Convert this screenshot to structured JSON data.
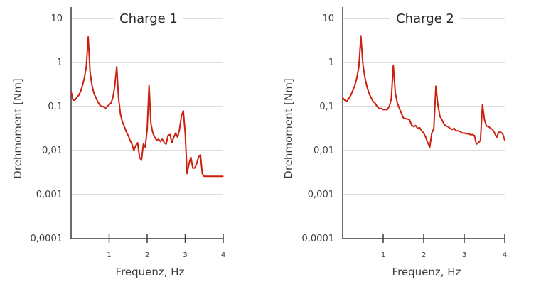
{
  "chart_data": [
    {
      "type": "line",
      "title": "Charge 1",
      "xlabel": "Frequenz, Hz",
      "ylabel": "Drehmoment [Nm]",
      "yscale": "log",
      "ylim": [
        0.0001,
        10
      ],
      "xlim": [
        0,
        4
      ],
      "ytick_labels": [
        "0,0001",
        "0,001",
        "0,01",
        "0,1",
        "1",
        "10"
      ],
      "xtick_labels": [
        "1",
        "2",
        "3",
        "4"
      ],
      "grid": "horizontal",
      "line_color": "#cc1f0e",
      "series": [
        {
          "x": [
            0.0,
            0.05,
            0.1,
            0.15,
            0.2,
            0.25,
            0.3,
            0.35,
            0.4,
            0.45,
            0.5,
            0.55,
            0.6,
            0.65,
            0.7,
            0.75,
            0.8,
            0.85,
            0.9,
            0.95,
            1.0,
            1.05,
            1.1,
            1.15,
            1.2,
            1.25,
            1.3,
            1.35,
            1.4,
            1.45,
            1.5,
            1.55,
            1.6,
            1.65,
            1.7,
            1.75,
            1.8,
            1.85,
            1.9,
            1.95,
            2.0,
            2.05,
            2.1,
            2.15,
            2.2,
            2.25,
            2.3,
            2.35,
            2.4,
            2.45,
            2.5,
            2.55,
            2.6,
            2.65,
            2.7,
            2.75,
            2.8,
            2.85,
            2.9,
            2.95,
            3.0,
            3.05,
            3.1,
            3.15,
            3.2,
            3.25,
            3.3,
            3.35,
            3.4,
            3.45,
            3.5,
            3.55,
            3.6,
            3.65,
            3.7,
            3.75,
            3.8,
            3.85,
            3.9,
            3.95,
            4.0
          ],
          "y": [
            0.22,
            0.14,
            0.14,
            0.16,
            0.18,
            0.22,
            0.3,
            0.45,
            0.8,
            3.8,
            0.6,
            0.3,
            0.2,
            0.16,
            0.13,
            0.11,
            0.1,
            0.1,
            0.09,
            0.1,
            0.11,
            0.12,
            0.16,
            0.3,
            0.8,
            0.15,
            0.065,
            0.045,
            0.035,
            0.027,
            0.022,
            0.017,
            0.014,
            0.01,
            0.013,
            0.015,
            0.007,
            0.006,
            0.014,
            0.012,
            0.03,
            0.3,
            0.04,
            0.025,
            0.02,
            0.017,
            0.018,
            0.016,
            0.018,
            0.015,
            0.014,
            0.022,
            0.023,
            0.015,
            0.02,
            0.025,
            0.02,
            0.03,
            0.06,
            0.08,
            0.025,
            0.003,
            0.005,
            0.007,
            0.004,
            0.004,
            0.005,
            0.007,
            0.008,
            0.003,
            0.0026,
            0.0026,
            0.0026,
            0.0026,
            0.0026,
            0.0026,
            0.0026,
            0.0026,
            0.0026,
            0.0026,
            0.0026
          ]
        }
      ]
    },
    {
      "type": "line",
      "title": "Charge 2",
      "xlabel": "Frequenz, Hz",
      "ylabel": "Drehmoment [Nm]",
      "yscale": "log",
      "ylim": [
        0.0001,
        10
      ],
      "xlim": [
        0,
        4
      ],
      "ytick_labels": [
        "0,0001",
        "0,001",
        "0,01",
        "0,1",
        "1",
        "10"
      ],
      "xtick_labels": [
        "1",
        "2",
        "3",
        "4"
      ],
      "grid": "horizontal",
      "line_color": "#cc1f0e",
      "series": [
        {
          "x": [
            0.0,
            0.05,
            0.1,
            0.15,
            0.2,
            0.25,
            0.3,
            0.35,
            0.4,
            0.45,
            0.5,
            0.55,
            0.6,
            0.65,
            0.7,
            0.75,
            0.8,
            0.85,
            0.9,
            0.95,
            1.0,
            1.05,
            1.1,
            1.15,
            1.2,
            1.25,
            1.3,
            1.35,
            1.4,
            1.45,
            1.5,
            1.55,
            1.6,
            1.65,
            1.7,
            1.75,
            1.8,
            1.85,
            1.9,
            1.95,
            2.0,
            2.05,
            2.1,
            2.15,
            2.2,
            2.25,
            2.3,
            2.35,
            2.4,
            2.45,
            2.5,
            2.55,
            2.6,
            2.65,
            2.7,
            2.75,
            2.8,
            2.85,
            2.9,
            2.95,
            3.0,
            3.05,
            3.1,
            3.15,
            3.2,
            3.25,
            3.3,
            3.35,
            3.4,
            3.45,
            3.5,
            3.55,
            3.6,
            3.65,
            3.7,
            3.75,
            3.8,
            3.85,
            3.9,
            3.95,
            4.0
          ],
          "y": [
            0.16,
            0.14,
            0.13,
            0.15,
            0.18,
            0.23,
            0.3,
            0.45,
            0.8,
            3.9,
            0.9,
            0.45,
            0.28,
            0.2,
            0.16,
            0.13,
            0.12,
            0.1,
            0.09,
            0.09,
            0.085,
            0.085,
            0.085,
            0.1,
            0.15,
            0.85,
            0.2,
            0.12,
            0.09,
            0.07,
            0.055,
            0.053,
            0.052,
            0.05,
            0.038,
            0.035,
            0.037,
            0.032,
            0.033,
            0.028,
            0.025,
            0.02,
            0.015,
            0.012,
            0.025,
            0.032,
            0.29,
            0.11,
            0.06,
            0.05,
            0.04,
            0.036,
            0.035,
            0.032,
            0.03,
            0.032,
            0.028,
            0.028,
            0.027,
            0.025,
            0.025,
            0.024,
            0.024,
            0.023,
            0.023,
            0.022,
            0.014,
            0.015,
            0.017,
            0.11,
            0.05,
            0.036,
            0.035,
            0.032,
            0.03,
            0.025,
            0.02,
            0.026,
            0.026,
            0.024,
            0.017
          ]
        }
      ]
    }
  ]
}
